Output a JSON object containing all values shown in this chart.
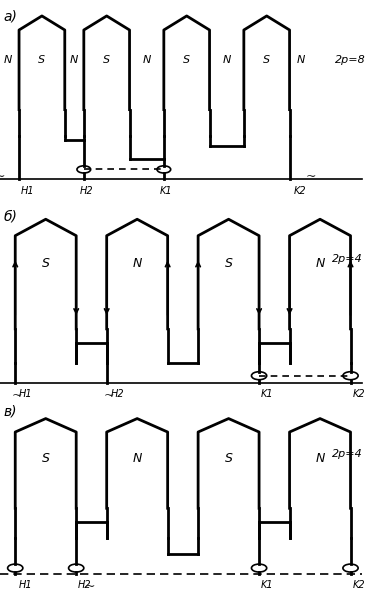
{
  "fig_width": 3.81,
  "fig_height": 6.04,
  "bg_color": "#ffffff",
  "line_color": "#000000",
  "section_labels": [
    "a)",
    "б)",
    "в)"
  ],
  "pole_labels_a": [
    "2p=8",
    "2p=4",
    "2p=4"
  ],
  "ns_a": [
    "N",
    "S",
    "N",
    "S",
    "N",
    "S",
    "N",
    "S",
    "N"
  ],
  "ns_b": [
    "S",
    "N",
    "S",
    "N"
  ],
  "ns_v": [
    "S",
    "N",
    "S",
    "N"
  ]
}
